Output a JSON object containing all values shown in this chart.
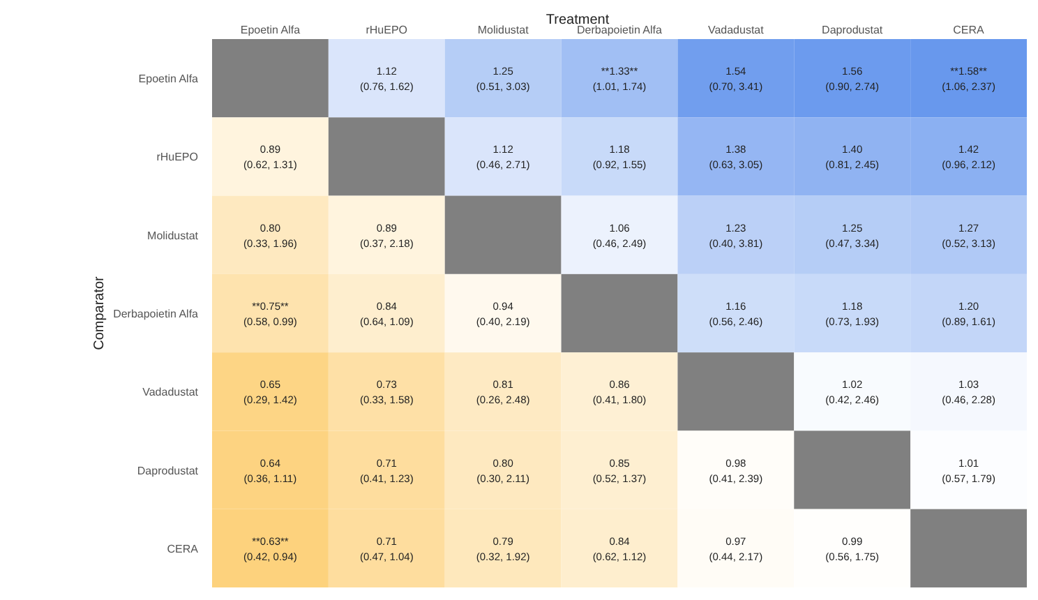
{
  "chart_data": {
    "type": "heatmap",
    "xlabel": "Treatment",
    "ylabel": "Comparator",
    "categories": [
      "Epoetin Alfa",
      "rHuEPO",
      "Molidustat",
      "Derbapoietin Alfa",
      "Vadadustat",
      "Daprodustat",
      "CERA"
    ],
    "y_categories": [
      "Epoetin Alfa",
      "rHuEPO",
      "Molidustat",
      "Derbapoietin Alfa",
      "Vadadustat",
      "Daprodustat",
      "CERA"
    ],
    "cells": [
      [
        null,
        1.12,
        1.25,
        1.33,
        1.54,
        1.56,
        1.58
      ],
      [
        0.89,
        null,
        1.12,
        1.18,
        1.38,
        1.4,
        1.42
      ],
      [
        0.8,
        0.89,
        null,
        1.06,
        1.23,
        1.25,
        1.27
      ],
      [
        0.75,
        0.84,
        0.94,
        null,
        1.16,
        1.18,
        1.2
      ],
      [
        0.65,
        0.73,
        0.81,
        0.86,
        null,
        1.02,
        1.03
      ],
      [
        0.64,
        0.71,
        0.8,
        0.85,
        0.98,
        null,
        1.01
      ],
      [
        0.63,
        0.71,
        0.79,
        0.84,
        0.97,
        0.99,
        null
      ]
    ],
    "cell_labels": [
      [
        null,
        "1.12",
        "1.25",
        "**1.33**",
        "1.54",
        "1.56",
        "**1.58**"
      ],
      [
        "0.89",
        null,
        "1.12",
        "1.18",
        "1.38",
        "1.40",
        "1.42"
      ],
      [
        "0.80",
        "0.89",
        null,
        "1.06",
        "1.23",
        "1.25",
        "1.27"
      ],
      [
        "**0.75**",
        "0.84",
        "0.94",
        null,
        "1.16",
        "1.18",
        "1.20"
      ],
      [
        "0.65",
        "0.73",
        "0.81",
        "0.86",
        null,
        "1.02",
        "1.03"
      ],
      [
        "0.64",
        "0.71",
        "0.80",
        "0.85",
        "0.98",
        null,
        "1.01"
      ],
      [
        "**0.63**",
        "0.71",
        "0.79",
        "0.84",
        "0.97",
        "0.99",
        null
      ]
    ],
    "annotations": [
      "(0.76, 1.62)",
      "(0.51, 3.03)",
      "(1.01, 1.74)",
      "(0.70, 3.41)",
      "(0.90, 2.74)",
      "(1.06, 2.37)",
      "(0.62, 1.31)",
      "(0.46, 2.71)",
      "(0.92, 1.55)",
      "(0.63, 3.05)",
      "(0.81, 2.45)",
      "(0.96, 2.12)",
      "(0.33, 1.96)",
      "(0.37, 2.18)",
      "(0.46, 2.49)",
      "(0.40, 3.81)",
      "(0.47, 3.34)",
      "(0.52, 3.13)",
      "(0.58, 0.99)",
      "(0.64, 1.09)",
      "(0.40, 2.19)",
      "(0.56, 2.46)",
      "(0.73, 1.93)",
      "(0.89, 1.61)",
      "(0.29, 1.42)",
      "(0.33, 1.58)",
      "(0.26, 2.48)",
      "(0.41, 1.80)",
      "(0.42, 2.46)",
      "(0.46, 2.28)",
      "(0.36, 1.11)",
      "(0.41, 1.23)",
      "(0.30, 2.11)",
      "(0.52, 1.37)",
      "(0.41, 2.39)",
      "(0.57, 1.79)",
      "(0.42, 0.94)",
      "(0.47, 1.04)",
      "(0.32, 1.92)",
      "(0.62, 1.12)",
      "(0.44, 2.17)",
      "(0.56, 1.75)"
    ]
  }
}
